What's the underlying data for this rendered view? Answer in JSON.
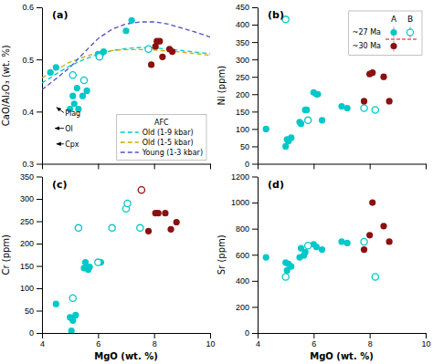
{
  "chart_data": [
    {
      "type": "scatter",
      "title": "(a)",
      "ylabel": "CaO/Al₂O₃ (wt. %)",
      "xlim": [
        4,
        10
      ],
      "xticks": [
        4,
        6,
        8,
        10
      ],
      "ylim": [
        0.3,
        0.6
      ],
      "yticks": [
        0.3,
        0.4,
        0.5,
        0.6
      ],
      "tick_labels": "y",
      "legend": "lower right",
      "legend_title": "AFC",
      "series": [
        {
          "name": "Old (1-9 kbar)",
          "type": "line",
          "line_style": "dashed",
          "color": "#00CCCC",
          "x": [
            4.0,
            4.5,
            5.0,
            5.5,
            6.0,
            6.5,
            7.0,
            7.5,
            8.0,
            8.5,
            9.0,
            9.5,
            10.0
          ],
          "values": [
            0.455,
            0.472,
            0.488,
            0.5,
            0.51,
            0.517,
            0.521,
            0.523,
            0.522,
            0.52,
            0.517,
            0.514,
            0.511
          ]
        },
        {
          "name": "Old (1-5 kbar)",
          "type": "line",
          "line_style": "dashed",
          "color": "#D4A800",
          "x": [
            4.0,
            4.5,
            5.0,
            5.5,
            6.0,
            6.5,
            7.0,
            7.5,
            8.0,
            8.5,
            9.0,
            9.5,
            10.0
          ],
          "values": [
            0.465,
            0.48,
            0.495,
            0.505,
            0.513,
            0.517,
            0.519,
            0.519,
            0.518,
            0.516,
            0.514,
            0.511,
            0.508
          ]
        },
        {
          "name": "Young (1-3 kbar)",
          "type": "line",
          "line_style": "dashed",
          "color": "#5050CC",
          "x": [
            4.0,
            4.5,
            5.0,
            5.5,
            6.0,
            6.5,
            7.0,
            7.5,
            8.0,
            8.5,
            9.0,
            9.5,
            10.0
          ],
          "values": [
            0.442,
            0.463,
            0.485,
            0.513,
            0.54,
            0.558,
            0.568,
            0.572,
            0.572,
            0.568,
            0.56,
            0.552,
            0.543
          ]
        },
        {
          "type": "scatter",
          "marker": "filled-circle",
          "color": "#00C8C8",
          "x": [
            4.3,
            4.5,
            5.0,
            5.1,
            5.15,
            5.25,
            5.3,
            5.45,
            5.6,
            6.0,
            6.1,
            6.2,
            7.0,
            7.2
          ],
          "values": [
            0.475,
            0.485,
            0.405,
            0.43,
            0.415,
            0.445,
            0.405,
            0.43,
            0.44,
            0.51,
            0.51,
            0.515,
            0.555,
            0.575
          ]
        },
        {
          "type": "scatter",
          "marker": "open-circle",
          "color": "#00C8C8",
          "x": [
            5.1,
            5.5,
            6.05,
            7.8
          ],
          "values": [
            0.47,
            0.46,
            0.505,
            0.52
          ]
        },
        {
          "type": "scatter",
          "marker": "filled-circle",
          "color": "#8B1010",
          "x": [
            7.9,
            8.05,
            8.1,
            8.2,
            8.3,
            8.55,
            8.65
          ],
          "values": [
            0.49,
            0.525,
            0.535,
            0.535,
            0.505,
            0.52,
            0.515
          ]
        }
      ],
      "annotations": [
        {
          "text": "Plag",
          "x": 4.82,
          "y": 0.397,
          "arrow_tail": [
            4.78,
            0.398
          ],
          "arrow_head": [
            4.52,
            0.408
          ]
        },
        {
          "text": "Ol",
          "x": 4.82,
          "y": 0.367,
          "arrow_tail": [
            4.78,
            0.368
          ],
          "arrow_head": [
            4.46,
            0.368
          ]
        },
        {
          "text": "Cpx",
          "x": 4.82,
          "y": 0.337,
          "arrow_tail": [
            4.78,
            0.338
          ],
          "arrow_head": [
            4.52,
            0.338
          ]
        }
      ]
    },
    {
      "type": "scatter",
      "title": "(b)",
      "ylabel": "Ni (ppm)",
      "xlim": [
        4,
        10
      ],
      "xticks": [
        4,
        6,
        8,
        10
      ],
      "ylim": [
        0,
        450
      ],
      "yticks": [
        0,
        50,
        100,
        150,
        200,
        250,
        300,
        350,
        400,
        450
      ],
      "tick_labels": "y",
      "legend": "upper right",
      "legend_table": {
        "columns": [
          "A",
          "B"
        ],
        "rows": [
          {
            "label": "~27 Ma",
            "markers": [
              "filled-circle",
              "open-circle"
            ],
            "colors": [
              "#00C8C8",
              "#00C8C8"
            ]
          },
          {
            "label": "~30 Ma",
            "markers": [
              "filled-circle"
            ],
            "colors": [
              "#8B1010"
            ]
          }
        ]
      },
      "series": [
        {
          "type": "scatter",
          "marker": "filled-circle",
          "color": "#00C8C8",
          "x": [
            4.3,
            5.0,
            5.05,
            5.1,
            5.2,
            5.5,
            5.55,
            5.7,
            5.75,
            6.0,
            6.1,
            6.15,
            6.3,
            7.0,
            7.2
          ],
          "values": [
            100,
            50,
            70,
            65,
            75,
            120,
            115,
            155,
            155,
            205,
            200,
            200,
            125,
            165,
            160
          ]
        },
        {
          "type": "scatter",
          "marker": "open-circle",
          "color": "#00C8C8",
          "x": [
            5.0,
            5.8,
            7.8,
            8.2
          ],
          "values": [
            415,
            125,
            160,
            155
          ]
        },
        {
          "type": "scatter",
          "marker": "filled-circle",
          "color": "#8B1010",
          "x": [
            7.8,
            8.0,
            8.1,
            8.5,
            8.7
          ],
          "values": [
            180,
            258,
            262,
            250,
            180
          ]
        }
      ]
    },
    {
      "type": "scatter",
      "title": "(c)",
      "xlabel": "MgO (wt. %)",
      "ylabel": "Cr (ppm)",
      "xlim": [
        4,
        10
      ],
      "xticks": [
        4,
        6,
        8,
        10
      ],
      "ylim": [
        0,
        350
      ],
      "yticks": [
        0,
        50,
        100,
        150,
        200,
        250,
        300,
        350
      ],
      "series": [
        {
          "type": "scatter",
          "marker": "filled-circle",
          "color": "#00C8C8",
          "x": [
            4.5,
            5.0,
            5.05,
            5.1,
            5.2,
            5.5,
            5.55,
            5.65,
            5.7,
            6.1
          ],
          "values": [
            65,
            35,
            5,
            28,
            40,
            145,
            158,
            142,
            148,
            158
          ]
        },
        {
          "type": "scatter",
          "marker": "open-circle",
          "color": "#00C8C8",
          "x": [
            5.1,
            5.3,
            6.0,
            6.5,
            7.0,
            7.05,
            7.5
          ],
          "values": [
            78,
            235,
            158,
            235,
            278,
            290,
            235
          ]
        },
        {
          "type": "scatter",
          "marker": "filled-circle",
          "color": "#8B1010",
          "x": [
            7.8,
            8.05,
            8.15,
            8.4,
            8.6,
            8.8
          ],
          "values": [
            228,
            268,
            268,
            268,
            232,
            248
          ]
        },
        {
          "type": "scatter",
          "marker": "open-circle",
          "color": "#8B1010",
          "x": [
            7.55
          ],
          "values": [
            320
          ]
        }
      ]
    },
    {
      "type": "scatter",
      "title": "(d)",
      "xlabel": "MgO (wt. %)",
      "ylabel": "Sr (ppm)",
      "xlim": [
        4,
        10
      ],
      "xticks": [
        4,
        6,
        8,
        10
      ],
      "ylim": [
        0,
        1200
      ],
      "yticks": [
        0,
        200,
        400,
        600,
        800,
        1000,
        1200
      ],
      "series": [
        {
          "type": "scatter",
          "marker": "filled-circle",
          "color": "#00C8C8",
          "x": [
            4.3,
            5.0,
            5.05,
            5.1,
            5.2,
            5.5,
            5.55,
            5.65,
            5.7,
            6.0,
            6.1,
            6.3,
            7.0,
            7.2
          ],
          "values": [
            580,
            540,
            480,
            530,
            510,
            580,
            650,
            595,
            620,
            680,
            660,
            640,
            700,
            690
          ]
        },
        {
          "type": "scatter",
          "marker": "open-circle",
          "color": "#00C8C8",
          "x": [
            5.0,
            5.8,
            7.8,
            8.2
          ],
          "values": [
            430,
            670,
            700,
            430
          ]
        },
        {
          "type": "scatter",
          "marker": "filled-circle",
          "color": "#8B1010",
          "x": [
            7.8,
            8.0,
            8.1,
            8.5,
            8.7
          ],
          "values": [
            640,
            750,
            1000,
            820,
            700
          ]
        }
      ]
    }
  ]
}
